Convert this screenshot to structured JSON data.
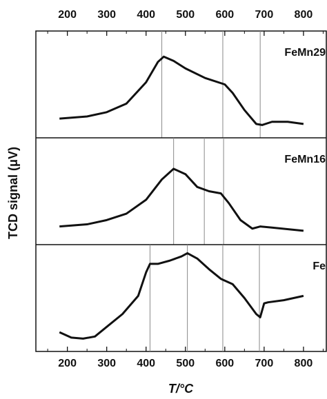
{
  "chart_data": {
    "type": "line",
    "ylabel": "TCD signal (μV)",
    "xlabel": "T/°C",
    "xlim": [
      120,
      858
    ],
    "xticks": [
      200,
      300,
      400,
      500,
      600,
      700,
      800
    ],
    "xminorticks": [
      150,
      250,
      350,
      450,
      550,
      650,
      750,
      850
    ],
    "panels": [
      {
        "ylim": [
          0,
          100
        ],
        "ref_lines": [
          440,
          595,
          690
        ],
        "x": [
          180,
          250,
          300,
          350,
          400,
          430,
          445,
          470,
          500,
          550,
          600,
          620,
          650,
          680,
          695,
          720,
          760,
          800
        ],
        "series": [
          {
            "name": "FeMn29",
            "color": "#111111",
            "values": [
              18,
              20,
              24,
              32,
              52,
              71,
              76,
              72,
              65,
              56,
              50,
              42,
              26,
              13,
              12,
              15,
              15,
              13
            ]
          }
        ]
      },
      {
        "ylim": [
          0,
          100
        ],
        "ref_lines": [
          470,
          548,
          597
        ],
        "x": [
          180,
          250,
          300,
          350,
          400,
          440,
          470,
          500,
          530,
          560,
          590,
          610,
          640,
          670,
          690,
          720,
          800
        ],
        "series": [
          {
            "name": "FeMn16",
            "color": "#111111",
            "values": [
              17,
              19,
              23,
              29,
              42,
              61,
              71,
              66,
              54,
              50,
              48,
              39,
              23,
              15,
              17,
              16,
              13
            ]
          }
        ]
      },
      {
        "ylim": [
          0,
          100
        ],
        "ref_lines": [
          410,
          505,
          595,
          688
        ],
        "x": [
          180,
          210,
          240,
          270,
          300,
          340,
          380,
          400,
          410,
          430,
          460,
          490,
          505,
          530,
          560,
          590,
          620,
          650,
          680,
          690,
          700,
          710,
          750,
          800
        ],
        "series": [
          {
            "name": "Fe",
            "color": "#111111",
            "values": [
              18,
              13,
              12,
              14,
              23,
              35,
              52,
              74,
              82,
              82,
              85,
              89,
              92,
              87,
              77,
              68,
              63,
              50,
              35,
              32,
              45,
              46,
              48,
              52
            ]
          }
        ]
      }
    ]
  }
}
